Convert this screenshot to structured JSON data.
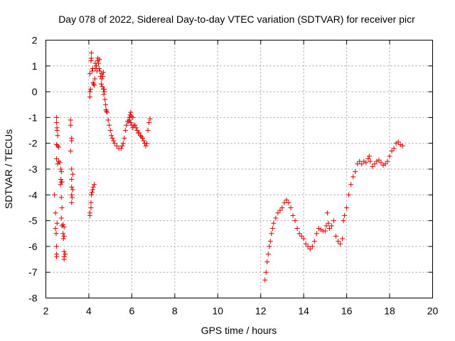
{
  "chart_data": {
    "type": "scatter",
    "title": "Day 078 of 2022, Sidereal Day-to-day VTEC variation (SDTVAR) for receiver picr",
    "xlabel": "GPS time / hours",
    "ylabel": "SDTVAR / TECUs",
    "xlim": [
      2,
      20
    ],
    "ylim": [
      -8,
      2
    ],
    "xticks": [
      2,
      4,
      6,
      8,
      10,
      12,
      14,
      16,
      18,
      20
    ],
    "yticks": [
      -8,
      -7,
      -6,
      -5,
      -4,
      -3,
      -2,
      -1,
      0,
      1,
      2
    ],
    "grid": true,
    "marker": "+",
    "color": "#e00000",
    "series": [
      {
        "name": "SDTVAR",
        "points": [
          [
            2.4,
            -4.0
          ],
          [
            2.45,
            -4.7
          ],
          [
            2.45,
            -5.3
          ],
          [
            2.48,
            -5.5
          ],
          [
            2.5,
            -6.0
          ],
          [
            2.5,
            -6.3
          ],
          [
            2.5,
            -6.4
          ],
          [
            2.52,
            -5.1
          ],
          [
            2.5,
            -1.0
          ],
          [
            2.5,
            -1.2
          ],
          [
            2.52,
            -1.4
          ],
          [
            2.52,
            -1.5
          ],
          [
            2.55,
            -1.7
          ],
          [
            2.5,
            -2.05
          ],
          [
            2.55,
            -2.1
          ],
          [
            2.6,
            -2.15
          ],
          [
            2.5,
            -2.6
          ],
          [
            2.6,
            -2.7
          ],
          [
            2.55,
            -2.8
          ],
          [
            2.65,
            -2.75
          ],
          [
            2.7,
            -3.0
          ],
          [
            2.72,
            -3.1
          ],
          [
            2.7,
            -3.4
          ],
          [
            2.72,
            -3.5
          ],
          [
            2.68,
            -3.6
          ],
          [
            2.75,
            -3.5
          ],
          [
            2.72,
            -4.1
          ],
          [
            2.75,
            -4.5
          ],
          [
            2.72,
            -4.9
          ],
          [
            2.8,
            -5.15
          ],
          [
            2.75,
            -5.2
          ],
          [
            2.85,
            -5.25
          ],
          [
            2.8,
            -5.5
          ],
          [
            2.85,
            -5.6
          ],
          [
            2.82,
            -5.7
          ],
          [
            2.85,
            -6.2
          ],
          [
            2.9,
            -6.3
          ],
          [
            2.85,
            -6.4
          ],
          [
            2.85,
            -6.5
          ],
          [
            3.15,
            -1.1
          ],
          [
            3.15,
            -1.3
          ],
          [
            3.2,
            -1.8
          ],
          [
            3.2,
            -1.9
          ],
          [
            3.15,
            -2.3
          ],
          [
            3.2,
            -3.0
          ],
          [
            3.25,
            -3.2
          ],
          [
            3.2,
            -3.4
          ],
          [
            3.2,
            -3.7
          ],
          [
            3.25,
            -3.8
          ],
          [
            3.2,
            -4.0
          ],
          [
            3.22,
            -4.1
          ],
          [
            3.2,
            -4.3
          ],
          [
            4.05,
            -4.7
          ],
          [
            4.05,
            -4.8
          ],
          [
            4.1,
            -4.5
          ],
          [
            4.1,
            -4.3
          ],
          [
            4.12,
            -4.0
          ],
          [
            4.15,
            -3.9
          ],
          [
            4.18,
            -3.8
          ],
          [
            4.2,
            -3.7
          ],
          [
            4.25,
            -3.6
          ],
          [
            4.05,
            -0.2
          ],
          [
            4.05,
            0.0
          ],
          [
            4.08,
            0.1
          ],
          [
            4.05,
            0.7
          ],
          [
            4.1,
            1.2
          ],
          [
            4.12,
            1.5
          ],
          [
            4.12,
            1.3
          ],
          [
            4.15,
            0.8
          ],
          [
            4.18,
            0.9
          ],
          [
            4.2,
            0.35
          ],
          [
            4.22,
            0.3
          ],
          [
            4.25,
            0.25
          ],
          [
            4.28,
            0.5
          ],
          [
            4.3,
            0.9
          ],
          [
            4.3,
            1.1
          ],
          [
            4.35,
            1.0
          ],
          [
            4.38,
            0.8
          ],
          [
            4.4,
            1.2
          ],
          [
            4.42,
            1.3
          ],
          [
            4.45,
            1.1
          ],
          [
            4.5,
            1.25
          ],
          [
            4.48,
            0.9
          ],
          [
            4.52,
            0.8
          ],
          [
            4.55,
            0.6
          ],
          [
            4.58,
            0.3
          ],
          [
            4.6,
            0.7
          ],
          [
            4.6,
            0.5
          ],
          [
            4.62,
            0.2
          ],
          [
            4.65,
            0.6
          ],
          [
            4.68,
            0.75
          ],
          [
            4.68,
            0.1
          ],
          [
            4.7,
            -0.1
          ],
          [
            4.72,
            0.0
          ],
          [
            4.72,
            0.1
          ],
          [
            4.75,
            -0.3
          ],
          [
            4.78,
            -0.5
          ],
          [
            4.8,
            -0.7
          ],
          [
            4.82,
            -0.75
          ],
          [
            4.85,
            -0.8
          ],
          [
            4.9,
            -1.1
          ],
          [
            4.95,
            -1.3
          ],
          [
            5.0,
            -1.5
          ],
          [
            5.05,
            -1.7
          ],
          [
            5.1,
            -1.8
          ],
          [
            5.15,
            -1.9
          ],
          [
            5.2,
            -2.0
          ],
          [
            5.3,
            -2.1
          ],
          [
            5.4,
            -2.2
          ],
          [
            5.5,
            -2.2
          ],
          [
            5.55,
            -2.1
          ],
          [
            5.6,
            -2.0
          ],
          [
            5.65,
            -1.8
          ],
          [
            5.7,
            -1.5
          ],
          [
            5.75,
            -1.3
          ],
          [
            5.8,
            -1.15
          ],
          [
            5.85,
            -1.15
          ],
          [
            5.9,
            -1.1
          ],
          [
            5.95,
            -1.2
          ],
          [
            6.0,
            -1.3
          ],
          [
            6.05,
            -1.4
          ],
          [
            6.1,
            -1.3
          ],
          [
            6.15,
            -1.3
          ],
          [
            6.2,
            -1.4
          ],
          [
            6.25,
            -1.5
          ],
          [
            6.3,
            -1.6
          ],
          [
            6.35,
            -1.6
          ],
          [
            6.4,
            -1.7
          ],
          [
            6.45,
            -1.75
          ],
          [
            6.5,
            -1.8
          ],
          [
            6.55,
            -1.9
          ],
          [
            6.6,
            -2.0
          ],
          [
            6.65,
            -2.1
          ],
          [
            6.7,
            -2.0
          ],
          [
            6.75,
            -1.5
          ],
          [
            6.8,
            -1.2
          ],
          [
            6.85,
            -1.05
          ],
          [
            5.95,
            -0.8
          ],
          [
            5.92,
            -0.9
          ],
          [
            5.98,
            -0.95
          ],
          [
            6.05,
            -1.0
          ],
          [
            5.88,
            -1.0
          ],
          [
            12.2,
            -7.3
          ],
          [
            12.25,
            -7.0
          ],
          [
            12.3,
            -6.6
          ],
          [
            12.35,
            -6.3
          ],
          [
            12.4,
            -6.0
          ],
          [
            12.45,
            -5.8
          ],
          [
            12.5,
            -5.5
          ],
          [
            12.55,
            -5.3
          ],
          [
            12.6,
            -5.1
          ],
          [
            12.7,
            -4.9
          ],
          [
            12.8,
            -4.7
          ],
          [
            12.9,
            -4.6
          ],
          [
            13.0,
            -4.5
          ],
          [
            13.1,
            -4.3
          ],
          [
            13.2,
            -4.2
          ],
          [
            13.3,
            -4.3
          ],
          [
            13.4,
            -4.5
          ],
          [
            13.5,
            -4.8
          ],
          [
            13.6,
            -5.0
          ],
          [
            13.7,
            -5.3
          ],
          [
            13.8,
            -5.5
          ],
          [
            13.9,
            -5.6
          ],
          [
            14.0,
            -5.7
          ],
          [
            14.1,
            -5.9
          ],
          [
            14.2,
            -6.0
          ],
          [
            14.3,
            -6.1
          ],
          [
            14.4,
            -6.0
          ],
          [
            14.5,
            -5.8
          ],
          [
            14.6,
            -5.5
          ],
          [
            14.7,
            -5.3
          ],
          [
            14.8,
            -5.35
          ],
          [
            14.9,
            -5.4
          ],
          [
            15.0,
            -5.4
          ],
          [
            15.05,
            -5.2
          ],
          [
            15.1,
            -4.7
          ],
          [
            15.15,
            -5.1
          ],
          [
            15.2,
            -5.3
          ],
          [
            15.3,
            -5.2
          ],
          [
            15.4,
            -5.0
          ],
          [
            15.5,
            -5.6
          ],
          [
            15.6,
            -5.8
          ],
          [
            15.7,
            -5.9
          ],
          [
            15.8,
            -5.7
          ],
          [
            15.85,
            -5.0
          ],
          [
            15.9,
            -4.8
          ],
          [
            16.0,
            -4.5
          ],
          [
            16.1,
            -4.0
          ],
          [
            16.2,
            -3.6
          ],
          [
            16.3,
            -3.3
          ],
          [
            16.4,
            -3.1
          ],
          [
            16.5,
            -2.8
          ],
          [
            16.6,
            -2.7
          ],
          [
            16.7,
            -2.8
          ],
          [
            16.8,
            -2.7
          ],
          [
            16.9,
            -2.75
          ],
          [
            17.0,
            -2.6
          ],
          [
            17.05,
            -2.5
          ],
          [
            17.1,
            -2.7
          ],
          [
            17.2,
            -2.9
          ],
          [
            17.3,
            -2.8
          ],
          [
            17.4,
            -2.7
          ],
          [
            17.5,
            -2.65
          ],
          [
            17.6,
            -2.75
          ],
          [
            17.7,
            -2.85
          ],
          [
            17.8,
            -2.8
          ],
          [
            17.9,
            -2.7
          ],
          [
            18.0,
            -2.5
          ],
          [
            18.1,
            -2.3
          ],
          [
            18.2,
            -2.2
          ],
          [
            18.3,
            -2.0
          ],
          [
            18.4,
            -1.95
          ],
          [
            18.5,
            -2.05
          ],
          [
            18.6,
            -2.1
          ]
        ]
      }
    ]
  }
}
